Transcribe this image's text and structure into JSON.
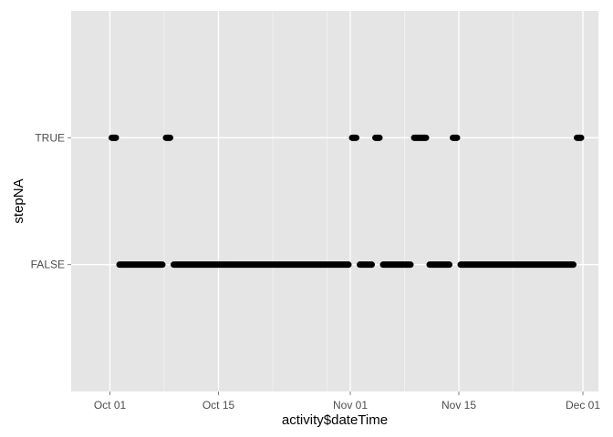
{
  "chart_data": {
    "type": "scatter",
    "title": "",
    "xlabel": "activity$dateTime",
    "ylabel": "stepNA",
    "x_axis": {
      "type": "date",
      "range": [
        "2012-09-26",
        "2012-12-03"
      ],
      "ticks": [
        {
          "date": "2012-10-01",
          "label": "Oct 01"
        },
        {
          "date": "2012-10-15",
          "label": "Oct 15"
        },
        {
          "date": "2012-11-01",
          "label": "Nov 01"
        },
        {
          "date": "2012-11-15",
          "label": "Nov 15"
        },
        {
          "date": "2012-12-01",
          "label": "Dec 01"
        }
      ],
      "minor_ticks": [
        "2012-10-08",
        "2012-10-22",
        "2012-10-29",
        "2012-11-08",
        "2012-11-22"
      ]
    },
    "y_axis": {
      "type": "categorical",
      "categories": [
        "FALSE",
        "TRUE"
      ]
    },
    "grid": true,
    "background": "#e5e5e5",
    "grid_color": "#ffffff",
    "point_color": "#000000",
    "series": [
      {
        "category": "TRUE",
        "segments": [
          [
            "2012-10-01",
            "2012-10-02"
          ],
          [
            "2012-10-08",
            "2012-10-09"
          ],
          [
            "2012-11-01",
            "2012-11-02"
          ],
          [
            "2012-11-04",
            "2012-11-05"
          ],
          [
            "2012-11-09",
            "2012-11-11"
          ],
          [
            "2012-11-14",
            "2012-11-15"
          ],
          [
            "2012-11-30",
            "2012-12-01"
          ]
        ]
      },
      {
        "category": "FALSE",
        "segments": [
          [
            "2012-10-02",
            "2012-10-08"
          ],
          [
            "2012-10-09",
            "2012-11-01"
          ],
          [
            "2012-11-02",
            "2012-11-04"
          ],
          [
            "2012-11-05",
            "2012-11-09"
          ],
          [
            "2012-11-11",
            "2012-11-14"
          ],
          [
            "2012-11-15",
            "2012-11-30"
          ]
        ]
      }
    ]
  }
}
